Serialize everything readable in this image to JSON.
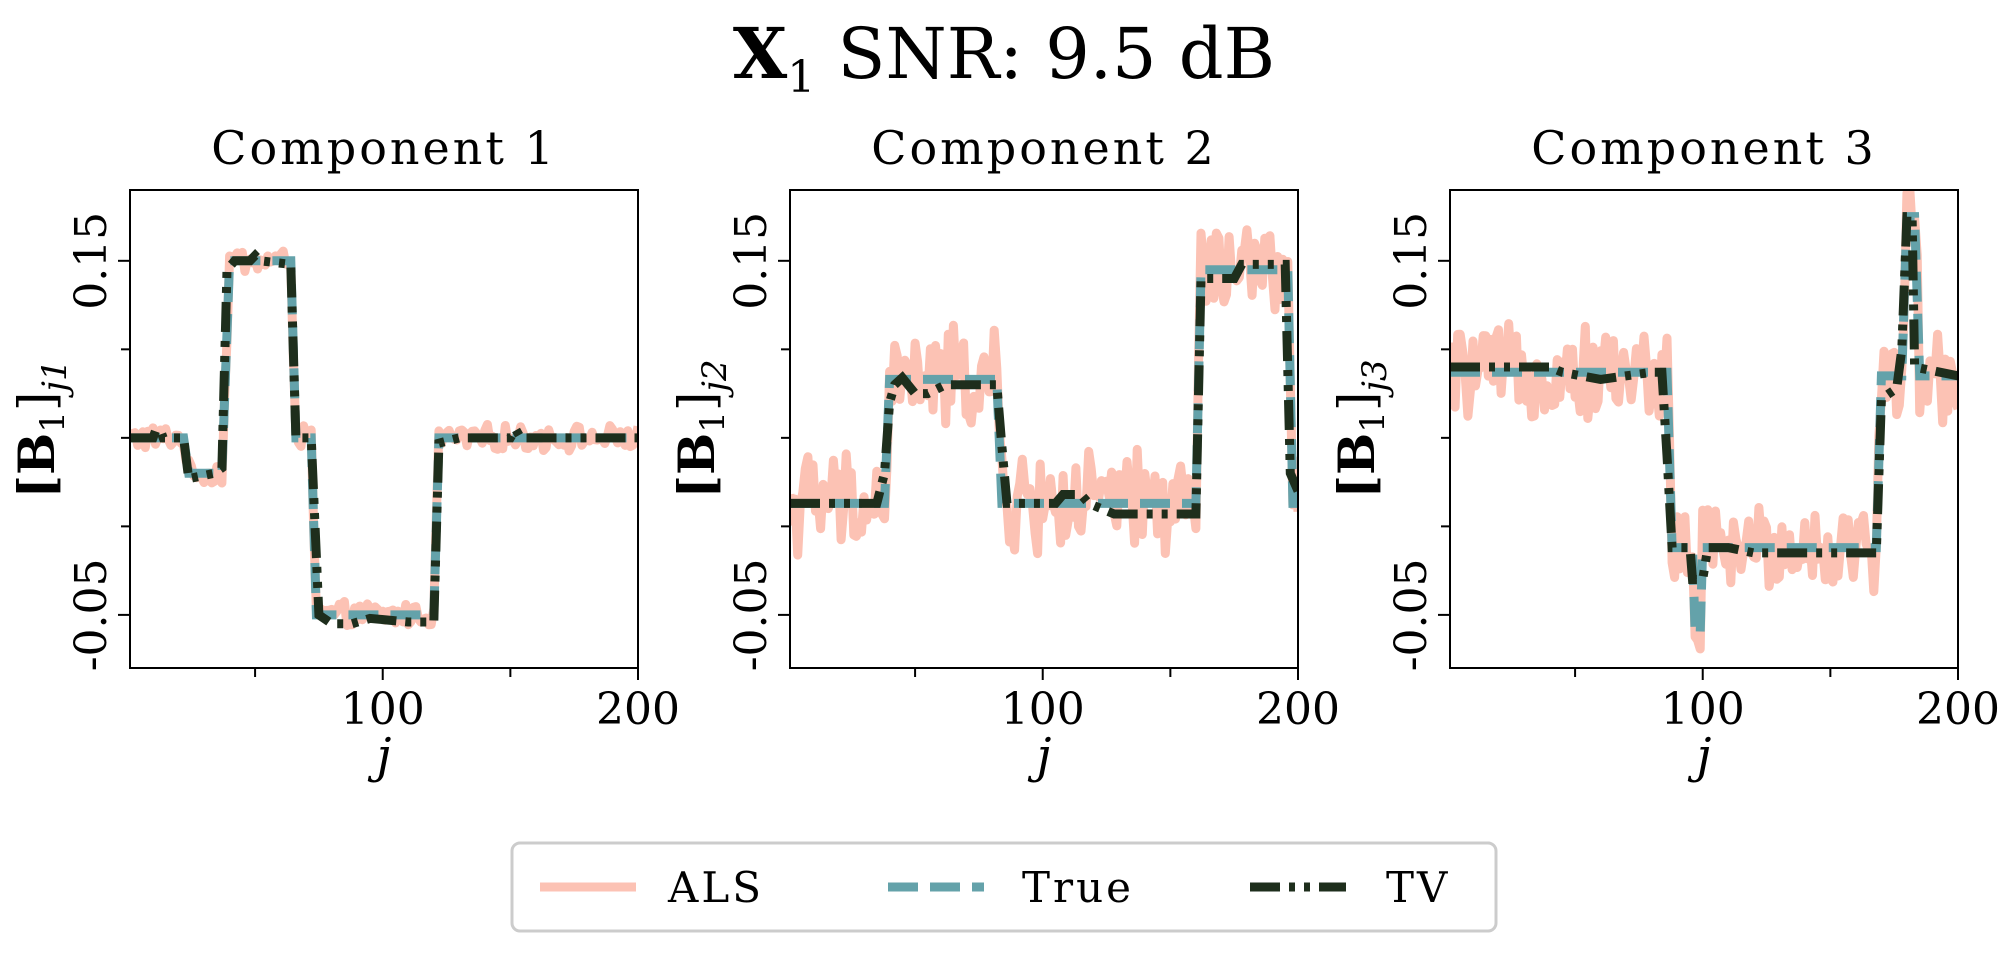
{
  "figure": {
    "title_main": "X",
    "title_sub": "1",
    "title_rest": " SNR: 9.5 dB"
  },
  "colors": {
    "als": "#fcc2b4",
    "true": "#64a2aa",
    "tv": "#1e2e1c"
  },
  "legend": {
    "placement": "bottom-center",
    "entries": [
      "ALS",
      "True",
      "TV"
    ]
  },
  "chart_data": [
    {
      "type": "line",
      "title": "Component 1",
      "xlabel": "j",
      "ylabel_main": "[B",
      "ylabel_sub": "1",
      "ylabel_end": "]",
      "ylabel_index": "j1",
      "xlim": [
        1,
        200
      ],
      "ylim": [
        -0.08,
        0.19
      ],
      "xticks": [
        100,
        200
      ],
      "xtick_labels": [
        "100",
        "200"
      ],
      "yticks": [
        -0.05,
        0.15
      ],
      "ytick_labels": [
        "-0.05",
        "0.15"
      ],
      "series": [
        {
          "name": "True",
          "style": "dashed",
          "segments": [
            [
              1,
              0.05
            ],
            [
              22,
              0.05
            ],
            [
              24,
              0.03
            ],
            [
              37,
              0.03
            ],
            [
              40,
              0.15
            ],
            [
              64,
              0.15
            ],
            [
              66,
              0.05
            ],
            [
              72,
              0.05
            ],
            [
              74,
              -0.05
            ],
            [
              120,
              -0.05
            ],
            [
              122,
              0.05
            ],
            [
              200,
              0.05
            ]
          ]
        },
        {
          "name": "TV",
          "style": "dashdot",
          "segments": [
            [
              1,
              0.05
            ],
            [
              10,
              0.05
            ],
            [
              11,
              0.054
            ],
            [
              13,
              0.054
            ],
            [
              14,
              0.05
            ],
            [
              22,
              0.05
            ],
            [
              24,
              0.027
            ],
            [
              34,
              0.03
            ],
            [
              37,
              0.033
            ],
            [
              39,
              0.145
            ],
            [
              42,
              0.15
            ],
            [
              48,
              0.15
            ],
            [
              50,
              0.153
            ],
            [
              52,
              0.15
            ],
            [
              64,
              0.148
            ],
            [
              66,
              0.05
            ],
            [
              72,
              0.05
            ],
            [
              75,
              -0.05
            ],
            [
              80,
              -0.055
            ],
            [
              88,
              -0.055
            ],
            [
              95,
              -0.052
            ],
            [
              110,
              -0.054
            ],
            [
              120,
              -0.054
            ],
            [
              122,
              0.047
            ],
            [
              130,
              0.05
            ],
            [
              150,
              0.05
            ],
            [
              152,
              0.055
            ],
            [
              154,
              0.05
            ],
            [
              200,
              0.05
            ]
          ]
        },
        {
          "name": "ALS",
          "style": "solid",
          "noise": [
            [
              1,
              200,
              0.006
            ]
          ]
        }
      ]
    },
    {
      "type": "line",
      "title": "Component 2",
      "xlabel": "j",
      "ylabel_main": "[B",
      "ylabel_sub": "1",
      "ylabel_end": "]",
      "ylabel_index": "j2",
      "xlim": [
        1,
        200
      ],
      "ylim": [
        -0.08,
        0.19
      ],
      "xticks": [
        100,
        200
      ],
      "xtick_labels": [
        "100",
        "200"
      ],
      "yticks": [
        -0.05,
        0.15
      ],
      "ytick_labels": [
        "-0.05",
        "0.15"
      ],
      "series": [
        {
          "name": "True",
          "style": "dashed",
          "segments": [
            [
              1,
              0.013
            ],
            [
              38,
              0.013
            ],
            [
              40,
              0.083
            ],
            [
              82,
              0.083
            ],
            [
              84,
              0.013
            ],
            [
              160,
              0.013
            ],
            [
              162,
              0.145
            ],
            [
              196,
              0.145
            ],
            [
              198,
              0.013
            ],
            [
              200,
              0.013
            ]
          ]
        },
        {
          "name": "TV",
          "style": "dashdot",
          "segments": [
            [
              1,
              0.013
            ],
            [
              35,
              0.013
            ],
            [
              38,
              0.03
            ],
            [
              40,
              0.07
            ],
            [
              42,
              0.08
            ],
            [
              45,
              0.084
            ],
            [
              50,
              0.075
            ],
            [
              55,
              0.075
            ],
            [
              62,
              0.08
            ],
            [
              70,
              0.08
            ],
            [
              82,
              0.08
            ],
            [
              84,
              0.045
            ],
            [
              86,
              0.013
            ],
            [
              105,
              0.013
            ],
            [
              108,
              0.018
            ],
            [
              115,
              0.018
            ],
            [
              118,
              0.013
            ],
            [
              128,
              0.007
            ],
            [
              145,
              0.007
            ],
            [
              147,
              0.007
            ],
            [
              148,
              0.007
            ],
            [
              160,
              0.007
            ],
            [
              162,
              0.14
            ],
            [
              175,
              0.14
            ],
            [
              178,
              0.148
            ],
            [
              195,
              0.148
            ],
            [
              197,
              0.03
            ],
            [
              200,
              0.02
            ]
          ]
        },
        {
          "name": "ALS",
          "style": "solid",
          "noise": [
            [
              1,
              200,
              0.025
            ]
          ]
        }
      ]
    },
    {
      "type": "line",
      "title": "Component 3",
      "xlabel": "j",
      "ylabel_main": "[B",
      "ylabel_sub": "1",
      "ylabel_end": "]",
      "ylabel_index": "j3",
      "xlim": [
        1,
        200
      ],
      "ylim": [
        -0.08,
        0.19
      ],
      "xticks": [
        100,
        200
      ],
      "xtick_labels": [
        "100",
        "200"
      ],
      "yticks": [
        -0.05,
        0.15
      ],
      "ytick_labels": [
        "-0.05",
        "0.15"
      ],
      "series": [
        {
          "name": "True",
          "style": "dashed",
          "segments": [
            [
              1,
              0.087
            ],
            [
              86,
              0.087
            ],
            [
              88,
              -0.012
            ],
            [
              96,
              -0.012
            ],
            [
              97,
              -0.06
            ],
            [
              99,
              -0.06
            ],
            [
              100,
              -0.012
            ],
            [
              168,
              -0.012
            ],
            [
              170,
              0.085
            ],
            [
              178,
              0.085
            ],
            [
              180,
              0.175
            ],
            [
              183,
              0.175
            ],
            [
              185,
              0.085
            ],
            [
              200,
              0.085
            ]
          ]
        },
        {
          "name": "TV",
          "style": "dashdot",
          "segments": [
            [
              1,
              0.09
            ],
            [
              40,
              0.09
            ],
            [
              45,
              0.087
            ],
            [
              60,
              0.083
            ],
            [
              80,
              0.087
            ],
            [
              84,
              0.087
            ],
            [
              86,
              0.04
            ],
            [
              88,
              -0.012
            ],
            [
              95,
              -0.012
            ],
            [
              96,
              -0.03
            ],
            [
              100,
              -0.03
            ],
            [
              102,
              -0.012
            ],
            [
              110,
              -0.012
            ],
            [
              120,
              -0.015
            ],
            [
              150,
              -0.015
            ],
            [
              168,
              -0.015
            ],
            [
              170,
              0.072
            ],
            [
              176,
              0.078
            ],
            [
              178,
              0.1
            ],
            [
              180,
              0.175
            ],
            [
              182,
              0.175
            ],
            [
              183,
              0.09
            ],
            [
              200,
              0.085
            ]
          ]
        },
        {
          "name": "ALS",
          "style": "solid",
          "noise": [
            [
              1,
              200,
              0.022
            ]
          ]
        }
      ]
    }
  ]
}
